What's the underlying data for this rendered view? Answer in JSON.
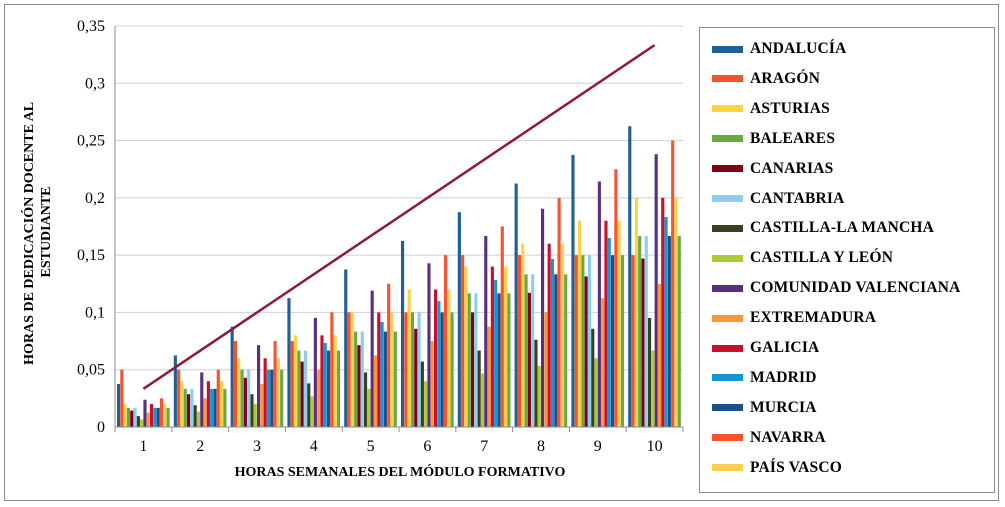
{
  "chart_data": {
    "type": "bar",
    "title": "",
    "xlabel": "HORAS SEMANALES DEL MÓDULO FORMATIVO",
    "ylabel": "HORAS DE DEDICACIÓN DOCENTE AL ESTUDIANTE",
    "ylim": [
      0,
      0.35
    ],
    "yticks": [
      "0",
      "0,05",
      "0,1",
      "0,15",
      "0,2",
      "0,25",
      "0,3",
      "0,35"
    ],
    "grid": true,
    "legend_position": "right",
    "categories": [
      "1",
      "2",
      "3",
      "4",
      "5",
      "6",
      "7",
      "8",
      "9",
      "10"
    ],
    "series": [
      {
        "name": "ANDALUCÍA",
        "color": "#1f5f96",
        "values": [
          0.0375,
          0.0625,
          0.0875,
          0.1125,
          0.1375,
          0.1625,
          0.1875,
          0.2125,
          0.2375,
          0.2625
        ]
      },
      {
        "name": "ARAGÓN",
        "color": "#f2522c",
        "values": [
          0.05,
          0.05,
          0.075,
          0.075,
          0.1,
          0.1,
          0.15,
          0.15,
          0.15,
          0.15
        ]
      },
      {
        "name": "ASTURIAS",
        "color": "#fdd247",
        "values": [
          0.02,
          0.04,
          0.06,
          0.08,
          0.1,
          0.12,
          0.14,
          0.16,
          0.18,
          0.2
        ]
      },
      {
        "name": "BALEARES",
        "color": "#6aa842",
        "values": [
          0.0167,
          0.0333,
          0.05,
          0.0667,
          0.0833,
          0.1,
          0.1167,
          0.1333,
          0.15,
          0.1667
        ]
      },
      {
        "name": "CANARIAS",
        "color": "#7f0018",
        "values": [
          0.0143,
          0.0286,
          0.0429,
          0.0571,
          0.0714,
          0.0857,
          0.1,
          0.1171,
          0.1314,
          0.1471
        ]
      },
      {
        "name": "CANTABRIA",
        "color": "#8ccdf0",
        "values": [
          0.0167,
          0.0333,
          0.05,
          0.0667,
          0.0833,
          0.1,
          0.1167,
          0.1333,
          0.15,
          0.1667
        ]
      },
      {
        "name": "CASTILLA-LA MANCHA",
        "color": "#374020",
        "values": [
          0.0095,
          0.019,
          0.0286,
          0.0381,
          0.0476,
          0.0571,
          0.0667,
          0.0762,
          0.0857,
          0.0952
        ]
      },
      {
        "name": "CASTILLA Y LEÓN",
        "color": "#aacb3a",
        "values": [
          0.0067,
          0.0133,
          0.02,
          0.0267,
          0.0333,
          0.04,
          0.0467,
          0.0533,
          0.06,
          0.0667
        ]
      },
      {
        "name": "COMUNIDAD VALENCIANA",
        "color": "#5a2f82",
        "values": [
          0.0238,
          0.0476,
          0.0714,
          0.0952,
          0.119,
          0.1429,
          0.1667,
          0.1905,
          0.2143,
          0.2381
        ]
      },
      {
        "name": "EXTREMADURA",
        "color": "#f7993a",
        "values": [
          0.0125,
          0.025,
          0.0375,
          0.05,
          0.0625,
          0.075,
          0.0875,
          0.1,
          0.1125,
          0.125
        ]
      },
      {
        "name": "GALICIA",
        "color": "#c8102e",
        "values": [
          0.02,
          0.04,
          0.06,
          0.08,
          0.1,
          0.12,
          0.14,
          0.16,
          0.18,
          0.2
        ]
      },
      {
        "name": "MADRID",
        "color": "#1a95d3",
        "values": [
          0.0167,
          0.0333,
          0.05,
          0.0733,
          0.0917,
          0.11,
          0.1283,
          0.1467,
          0.165,
          0.1833
        ]
      },
      {
        "name": "MURCIA",
        "color": "#1b4f8a",
        "values": [
          0.0167,
          0.0333,
          0.05,
          0.0667,
          0.0833,
          0.1,
          0.1167,
          0.1333,
          0.15,
          0.1667
        ]
      },
      {
        "name": "NAVARRA",
        "color": "#f5542f",
        "values": [
          0.025,
          0.05,
          0.075,
          0.1,
          0.125,
          0.15,
          0.175,
          0.2,
          0.225,
          0.25
        ]
      },
      {
        "name": "PAÍS VASCO",
        "color": "#fcd04e",
        "values": [
          0.02,
          0.04,
          0.06,
          0.08,
          0.1,
          0.12,
          0.14,
          0.16,
          0.18,
          0.2
        ]
      },
      {
        "name": "",
        "color": "#6aa842",
        "values": [
          0.0167,
          0.0333,
          0.05,
          0.0667,
          0.0833,
          0.1,
          0.1167,
          0.1333,
          0.15,
          0.1667
        ]
      }
    ],
    "trend_line": {
      "color": "#8b1a3c",
      "x": [
        "1",
        "10"
      ],
      "y": [
        0.0333,
        0.3333
      ]
    }
  }
}
